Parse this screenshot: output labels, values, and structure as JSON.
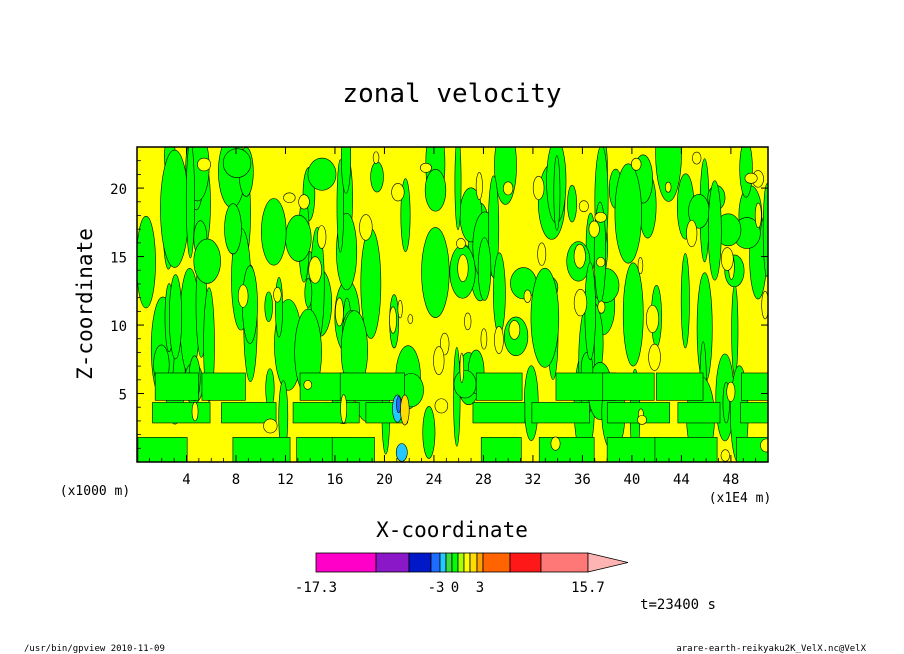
{
  "chart_data": {
    "type": "heatmap",
    "title": "zonal velocity",
    "xlabel": "X-coordinate",
    "ylabel": "Z-coordinate",
    "x_unit": "(x1E4 m)",
    "y_unit": "(x1000 m)",
    "xlim": [
      0,
      51
    ],
    "ylim": [
      0,
      23
    ],
    "x_ticks": [
      4,
      8,
      12,
      16,
      20,
      24,
      28,
      32,
      36,
      40,
      44,
      48
    ],
    "y_ticks": [
      5,
      10,
      15,
      20
    ],
    "colorbar": {
      "levels": [
        -17.3,
        -13.1,
        -9.7,
        -6.3,
        -3,
        -2,
        -1,
        0,
        1,
        2,
        3,
        5.2,
        8.4,
        12.1,
        15.7
      ],
      "colors": [
        "#ff00c8",
        "#8a18c8",
        "#0018c8",
        "#1e6cff",
        "#22c8ff",
        "#3cdc3c",
        "#00ff00",
        "#a8ff00",
        "#ffff00",
        "#ffdd00",
        "#ffa000",
        "#ff6400",
        "#ff1818",
        "#ff7878",
        "#ffb4b4"
      ],
      "tick_labels": [
        "-17.3",
        "-3",
        "0",
        "3",
        "15.7"
      ]
    },
    "dominant_colors": {
      "positive": "#ffff00",
      "negative": "#00ff00"
    },
    "time_label": "t=23400 s"
  },
  "footer": {
    "left": "/usr/bin/gpview  2010-11-09",
    "right": "arare-earth-reikyaku2K_VelX.nc@VelX"
  }
}
